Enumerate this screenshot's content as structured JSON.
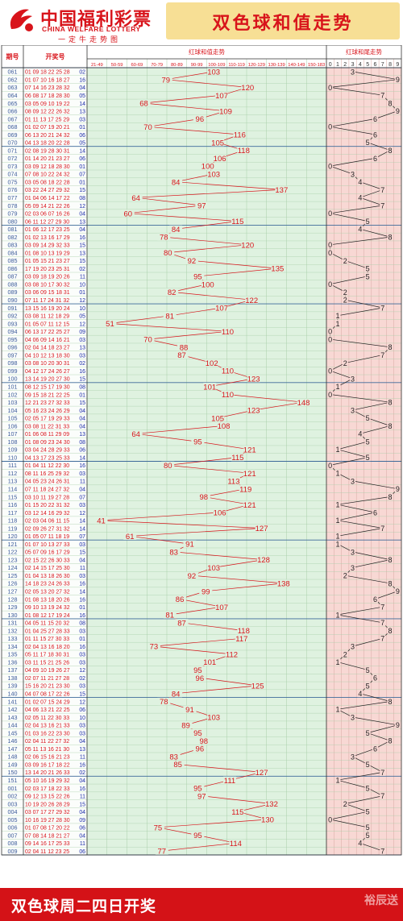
{
  "header": {
    "logo_cn": "中国福利彩票",
    "logo_en": "CHINA WELFARE LOTTERY",
    "logo_sub": "一定牛走势图",
    "title": "双色球和值走势"
  },
  "footer": {
    "text": "双色球周二四日开奖",
    "watermark": "裕辰送"
  },
  "colors": {
    "red": "#d8141b",
    "blue": "#1a2aa8",
    "green_bg": "#dff2e0",
    "pink_bg": "#f8d8d4",
    "grid": "#a8cfa9",
    "header_yellow": "#f7df95"
  },
  "chart_data": {
    "type": "line",
    "columns": {
      "issue": "期号",
      "numbers": "开奖号",
      "sum_group": "红球和值走势",
      "tail_group": "红球和尾走势"
    },
    "sum_ranges": [
      "21-49",
      "50-59",
      "60-69",
      "70-79",
      "80-89",
      "90-99",
      "100-109",
      "110-119",
      "120-129",
      "130-139",
      "140-149",
      "150-183"
    ],
    "tail_digits": [
      "0",
      "1",
      "2",
      "3",
      "4",
      "5",
      "6",
      "7",
      "8",
      "9"
    ],
    "rows": [
      {
        "issue": "061",
        "reds": "01 09 18 22 25 28",
        "blue": "02",
        "sum": 103
      },
      {
        "issue": "062",
        "reds": "01 07 10 16 18 27",
        "blue": "16",
        "sum": 79
      },
      {
        "issue": "063",
        "reds": "07 14 16 23 28 32",
        "blue": "04",
        "sum": 120
      },
      {
        "issue": "064",
        "reds": "06 08 17 18 28 30",
        "blue": "05",
        "sum": 107
      },
      {
        "issue": "065",
        "reds": "03 05 09 10 19 22",
        "blue": "14",
        "sum": 68
      },
      {
        "issue": "066",
        "reds": "08 09 12 22 26 32",
        "blue": "13",
        "sum": 109
      },
      {
        "issue": "067",
        "reds": "01 11 13 17 25 29",
        "blue": "03",
        "sum": 96
      },
      {
        "issue": "068",
        "reds": "01 02 07 19 20 21",
        "blue": "01",
        "sum": 70
      },
      {
        "issue": "069",
        "reds": "06 13 20 21 24 32",
        "blue": "06",
        "sum": 116
      },
      {
        "issue": "070",
        "reds": "04 13 18 20 22 28",
        "blue": "05",
        "sum": 105
      },
      {
        "issue": "071",
        "reds": "02 08 19 28 30 31",
        "blue": "14",
        "sum": 118
      },
      {
        "issue": "072",
        "reds": "01 14 20 21 23 27",
        "blue": "06",
        "sum": 106
      },
      {
        "issue": "073",
        "reds": "03 09 12 18 28 30",
        "blue": "01",
        "sum": 100
      },
      {
        "issue": "074",
        "reds": "07 08 10 22 24 32",
        "blue": "07",
        "sum": 103
      },
      {
        "issue": "075",
        "reds": "03 05 08 18 22 28",
        "blue": "01",
        "sum": 84
      },
      {
        "issue": "076",
        "reds": "03 22 24 27 29 32",
        "blue": "15",
        "sum": 137
      },
      {
        "issue": "077",
        "reds": "01 04 06 14 17 22",
        "blue": "08",
        "sum": 64
      },
      {
        "issue": "078",
        "reds": "05 09 14 21 22 26",
        "blue": "12",
        "sum": 97
      },
      {
        "issue": "079",
        "reds": "02 03 06 07 16 26",
        "blue": "04",
        "sum": 60
      },
      {
        "issue": "080",
        "reds": "06 11 12 27 29 30",
        "blue": "13",
        "sum": 115
      },
      {
        "issue": "081",
        "reds": "01 06 12 17 23 25",
        "blue": "04",
        "sum": 84
      },
      {
        "issue": "082",
        "reds": "01 02 13 16 17 29",
        "blue": "16",
        "sum": 78
      },
      {
        "issue": "083",
        "reds": "03 09 14 29 32 33",
        "blue": "15",
        "sum": 120
      },
      {
        "issue": "084",
        "reds": "01 08 10 13 19 29",
        "blue": "13",
        "sum": 80
      },
      {
        "issue": "085",
        "reds": "01 05 15 21 23 27",
        "blue": "15",
        "sum": 92
      },
      {
        "issue": "086",
        "reds": "17 19 20 23 25 31",
        "blue": "02",
        "sum": 135
      },
      {
        "issue": "087",
        "reds": "03 09 18 19 20 26",
        "blue": "11",
        "sum": 95
      },
      {
        "issue": "088",
        "reds": "03 08 10 17 30 32",
        "blue": "10",
        "sum": 100
      },
      {
        "issue": "089",
        "reds": "03 06 09 15 18 31",
        "blue": "01",
        "sum": 82
      },
      {
        "issue": "090",
        "reds": "07 11 17 24 31 32",
        "blue": "12",
        "sum": 122
      },
      {
        "issue": "091",
        "reds": "13 15 16 19 20 24",
        "blue": "10",
        "sum": 107
      },
      {
        "issue": "092",
        "reds": "03 08 11 12 18 29",
        "blue": "05",
        "sum": 81
      },
      {
        "issue": "093",
        "reds": "01 05 07 11 12 15",
        "blue": "12",
        "sum": 51
      },
      {
        "issue": "094",
        "reds": "06 13 17 22 25 27",
        "blue": "09",
        "sum": 110
      },
      {
        "issue": "095",
        "reds": "04 06 09 14 16 21",
        "blue": "03",
        "sum": 70
      },
      {
        "issue": "096",
        "reds": "02 04 14 18 23 27",
        "blue": "13",
        "sum": 88
      },
      {
        "issue": "097",
        "reds": "04 10 12 13 18 30",
        "blue": "03",
        "sum": 87
      },
      {
        "issue": "098",
        "reds": "03 08 10 20 30 31",
        "blue": "02",
        "sum": 102
      },
      {
        "issue": "099",
        "reds": "04 12 17 24 26 27",
        "blue": "16",
        "sum": 110
      },
      {
        "issue": "100",
        "reds": "13 14 19 20 27 30",
        "blue": "15",
        "sum": 123
      },
      {
        "issue": "101",
        "reds": "08 12 15 17 19 30",
        "blue": "08",
        "sum": 101
      },
      {
        "issue": "102",
        "reds": "09 15 18 21 22 25",
        "blue": "01",
        "sum": 110
      },
      {
        "issue": "103",
        "reds": "12 21 23 27 32 33",
        "blue": "15",
        "sum": 148
      },
      {
        "issue": "104",
        "reds": "05 16 23 24 26 29",
        "blue": "04",
        "sum": 123
      },
      {
        "issue": "105",
        "reds": "02 05 17 19 29 33",
        "blue": "04",
        "sum": 105
      },
      {
        "issue": "106",
        "reds": "03 08 11 22 31 33",
        "blue": "04",
        "sum": 108
      },
      {
        "issue": "107",
        "reds": "01 06 08 11 29 09",
        "blue": "13",
        "sum": 64
      },
      {
        "issue": "108",
        "reds": "01 08 09 23 24 30",
        "blue": "08",
        "sum": 95
      },
      {
        "issue": "109",
        "reds": "03 04 24 28 29 33",
        "blue": "06",
        "sum": 121
      },
      {
        "issue": "110",
        "reds": "04 13 17 23 25 33",
        "blue": "14",
        "sum": 115
      },
      {
        "issue": "111",
        "reds": "01 04 11 12 22 30",
        "blue": "16",
        "sum": 80
      },
      {
        "issue": "112",
        "reds": "08 11 16 25 29 32",
        "blue": "03",
        "sum": 121
      },
      {
        "issue": "113",
        "reds": "04 05 23 24 26 31",
        "blue": "11",
        "sum": 113
      },
      {
        "issue": "114",
        "reds": "07 11 18 24 27 32",
        "blue": "04",
        "sum": 119
      },
      {
        "issue": "115",
        "reds": "03 10 11 19 27 28",
        "blue": "07",
        "sum": 98
      },
      {
        "issue": "116",
        "reds": "01 15 20 22 31 32",
        "blue": "03",
        "sum": 121
      },
      {
        "issue": "117",
        "reds": "03 12 14 16 29 32",
        "blue": "12",
        "sum": 106
      },
      {
        "issue": "118",
        "reds": "02 03 04 06 11 15",
        "blue": "14",
        "sum": 41
      },
      {
        "issue": "119",
        "reds": "02 09 26 27 31 32",
        "blue": "14",
        "sum": 127
      },
      {
        "issue": "120",
        "reds": "01 05 07 11 18 19",
        "blue": "07",
        "sum": 61
      },
      {
        "issue": "121",
        "reds": "01 07 10 13 27 33",
        "blue": "03",
        "sum": 91
      },
      {
        "issue": "122",
        "reds": "05 07 09 16 17 29",
        "blue": "15",
        "sum": 83
      },
      {
        "issue": "123",
        "reds": "02 15 22 26 30 33",
        "blue": "04",
        "sum": 128
      },
      {
        "issue": "124",
        "reds": "02 14 15 17 25 30",
        "blue": "11",
        "sum": 103
      },
      {
        "issue": "125",
        "reds": "01 04 13 18 26 30",
        "blue": "03",
        "sum": 92
      },
      {
        "issue": "126",
        "reds": "14 18 23 24 26 33",
        "blue": "16",
        "sum": 138
      },
      {
        "issue": "127",
        "reds": "02 05 13 20 27 32",
        "blue": "14",
        "sum": 99
      },
      {
        "issue": "128",
        "reds": "01 08 13 18 20 26",
        "blue": "16",
        "sum": 86
      },
      {
        "issue": "129",
        "reds": "09 10 13 19 24 32",
        "blue": "01",
        "sum": 107
      },
      {
        "issue": "130",
        "reds": "01 08 12 17 19 24",
        "blue": "16",
        "sum": 81
      },
      {
        "issue": "131",
        "reds": "04 05 11 15 20 32",
        "blue": "08",
        "sum": 87
      },
      {
        "issue": "132",
        "reds": "01 04 25 27 28 33",
        "blue": "03",
        "sum": 118
      },
      {
        "issue": "133",
        "reds": "01 11 15 27 30 33",
        "blue": "01",
        "sum": 117
      },
      {
        "issue": "134",
        "reds": "02 04 13 16 18 20",
        "blue": "16",
        "sum": 73
      },
      {
        "issue": "135",
        "reds": "05 11 17 18 30 31",
        "blue": "03",
        "sum": 112
      },
      {
        "issue": "136",
        "reds": "03 11 15 21 25 26",
        "blue": "03",
        "sum": 101
      },
      {
        "issue": "137",
        "reds": "04 09 10 19 26 27",
        "blue": "12",
        "sum": 95
      },
      {
        "issue": "138",
        "reds": "02 07 11 21 27 28",
        "blue": "02",
        "sum": 96
      },
      {
        "issue": "139",
        "reds": "15 16 20 21 23 30",
        "blue": "03",
        "sum": 125
      },
      {
        "issue": "140",
        "reds": "04 07 08 17 22 26",
        "blue": "15",
        "sum": 84
      },
      {
        "issue": "141",
        "reds": "01 02 07 15 24 29",
        "blue": "12",
        "sum": 78
      },
      {
        "issue": "142",
        "reds": "04 06 13 21 22 25",
        "blue": "06",
        "sum": 91
      },
      {
        "issue": "143",
        "reds": "02 05 11 22 30 33",
        "blue": "10",
        "sum": 103
      },
      {
        "issue": "144",
        "reds": "02 04 13 16 21 33",
        "blue": "03",
        "sum": 89
      },
      {
        "issue": "145",
        "reds": "01 03 16 22 23 30",
        "blue": "03",
        "sum": 95
      },
      {
        "issue": "146",
        "reds": "02 04 11 22 27 32",
        "blue": "04",
        "sum": 98
      },
      {
        "issue": "147",
        "reds": "05 11 13 16 21 30",
        "blue": "13",
        "sum": 96
      },
      {
        "issue": "148",
        "reds": "02 06 15 16 21 23",
        "blue": "11",
        "sum": 83
      },
      {
        "issue": "149",
        "reds": "03 09 16 17 18 22",
        "blue": "16",
        "sum": 85
      },
      {
        "issue": "150",
        "reds": "13 14 20 21 26 33",
        "blue": "02",
        "sum": 127
      },
      {
        "issue": "151",
        "reds": "05 10 16 19 29 32",
        "blue": "04",
        "sum": 111
      },
      {
        "issue": "001",
        "reds": "02 03 17 18 22 33",
        "blue": "16",
        "sum": 95
      },
      {
        "issue": "002",
        "reds": "09 12 13 15 22 26",
        "blue": "11",
        "sum": 97
      },
      {
        "issue": "003",
        "reds": "10 19 20 26 28 29",
        "blue": "15",
        "sum": 132
      },
      {
        "issue": "004",
        "reds": "03 07 17 27 29 32",
        "blue": "04",
        "sum": 115
      },
      {
        "issue": "005",
        "reds": "10 16 19 27 28 30",
        "blue": "09",
        "sum": 130
      },
      {
        "issue": "006",
        "reds": "01 07 08 17 20 22",
        "blue": "06",
        "sum": 75
      },
      {
        "issue": "007",
        "reds": "07 08 14 18 21 27",
        "blue": "04",
        "sum": 95
      },
      {
        "issue": "008",
        "reds": "09 14 16 17 25 33",
        "blue": "11",
        "sum": 114
      },
      {
        "issue": "009",
        "reds": "02 04 11 12 23 25",
        "blue": "06",
        "sum": 77
      }
    ]
  }
}
